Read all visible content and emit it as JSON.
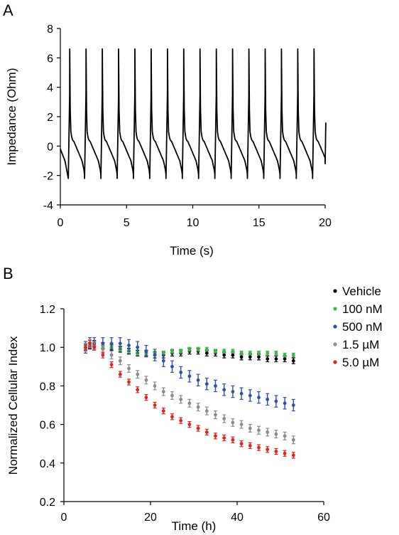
{
  "panels": {
    "a": {
      "label": "A"
    },
    "b": {
      "label": "B"
    }
  },
  "chart_data": [
    {
      "type": "line",
      "panel": "A",
      "xlabel": "Time (s)",
      "ylabel": "Impedance (Ohm)",
      "xlim": [
        0,
        20
      ],
      "ylim": [
        -4,
        8
      ],
      "xticks": [
        0,
        5,
        10,
        15,
        20
      ],
      "yticks": [
        -4,
        -2,
        0,
        2,
        4,
        6,
        8
      ],
      "grid": false,
      "color": "#000000",
      "cycle_period_s": 1.23,
      "first_peak_s": 0.7,
      "peak_times_s": [
        0.7,
        1.93,
        3.16,
        4.39,
        5.62,
        6.85,
        8.08,
        9.31,
        10.54,
        11.77,
        13.0,
        14.23,
        15.46,
        16.69,
        17.92,
        19.15
      ],
      "peak_value": 6.6,
      "trough_value": -2.2,
      "series": [
        {
          "name": "",
          "profile": {
            "phase": [
              0.0,
              0.05,
              0.1,
              0.5,
              1.0,
              1.5,
              2.0,
              2.5,
              3.0,
              3.5,
              4.0,
              4.5,
              5.0,
              5.5,
              6.0,
              6.5,
              7.0,
              7.5,
              8.0,
              8.5,
              9.0,
              9.5,
              10.0,
              10.5,
              11.0,
              11.5,
              12.0,
              12.05
            ],
            "value": [
              -2.2,
              3.5,
              6.6,
              2.5,
              1.0,
              0.7,
              0.5,
              0.4,
              0.35,
              0.3,
              0.2,
              0.1,
              0.0,
              -0.1,
              -0.2,
              -0.3,
              -0.4,
              -0.5,
              -0.6,
              -0.7,
              -0.8,
              -0.9,
              -1.0,
              -1.2,
              -1.4,
              -1.6,
              -1.9,
              -2.2
            ]
          }
        }
      ]
    },
    {
      "type": "scatter",
      "panel": "B",
      "xlabel": "Time (h)",
      "ylabel": "Normalized Cellular Index",
      "xlim": [
        0,
        60
      ],
      "ylim": [
        0.2,
        1.2
      ],
      "xticks": [
        0,
        20,
        40,
        60
      ],
      "yticks": [
        0.2,
        0.4,
        0.6,
        0.8,
        1.0,
        1.2
      ],
      "grid": false,
      "legend": "right",
      "x": [
        5,
        6,
        7,
        9,
        11,
        13,
        15,
        17,
        19,
        21,
        23,
        25,
        27,
        29,
        31,
        33,
        35,
        37,
        39,
        41,
        43,
        45,
        47,
        49,
        51,
        53
      ],
      "series": [
        {
          "name": "Vehicle",
          "color": "#000000",
          "values": [
            1.0,
            1.01,
            1.02,
            1.01,
            1.0,
            0.99,
            0.98,
            0.97,
            0.97,
            0.96,
            0.96,
            0.97,
            0.97,
            0.98,
            0.98,
            0.97,
            0.97,
            0.96,
            0.96,
            0.95,
            0.95,
            0.95,
            0.94,
            0.94,
            0.94,
            0.93
          ],
          "error": 0.015
        },
        {
          "name": "100 nM",
          "color": "#3db44a",
          "values": [
            1.0,
            1.01,
            1.02,
            1.01,
            1.0,
            0.99,
            0.98,
            0.97,
            0.97,
            0.97,
            0.97,
            0.98,
            0.98,
            0.99,
            0.99,
            0.99,
            0.98,
            0.98,
            0.98,
            0.97,
            0.97,
            0.97,
            0.97,
            0.97,
            0.96,
            0.96
          ],
          "error": 0.01
        },
        {
          "name": "500 nM",
          "color": "#2f4fa8",
          "values": [
            1.0,
            1.02,
            1.02,
            1.02,
            1.02,
            1.02,
            1.01,
            1.0,
            0.98,
            0.96,
            0.93,
            0.9,
            0.87,
            0.85,
            0.83,
            0.81,
            0.8,
            0.78,
            0.77,
            0.76,
            0.75,
            0.74,
            0.73,
            0.72,
            0.71,
            0.7
          ],
          "error": 0.03
        },
        {
          "name": "1.5 µM",
          "color": "#8c8c8c",
          "values": [
            1.0,
            1.02,
            1.01,
            0.99,
            0.96,
            0.93,
            0.89,
            0.86,
            0.83,
            0.8,
            0.77,
            0.75,
            0.73,
            0.71,
            0.69,
            0.67,
            0.65,
            0.63,
            0.61,
            0.6,
            0.58,
            0.57,
            0.56,
            0.55,
            0.54,
            0.52
          ],
          "error": 0.02
        },
        {
          "name": "5.0 µM",
          "color": "#e32222",
          "values": [
            1.0,
            1.02,
            1.0,
            0.96,
            0.91,
            0.86,
            0.82,
            0.78,
            0.74,
            0.7,
            0.67,
            0.64,
            0.62,
            0.6,
            0.58,
            0.56,
            0.54,
            0.53,
            0.52,
            0.5,
            0.49,
            0.48,
            0.47,
            0.46,
            0.45,
            0.44
          ],
          "error": 0.015
        }
      ]
    }
  ]
}
